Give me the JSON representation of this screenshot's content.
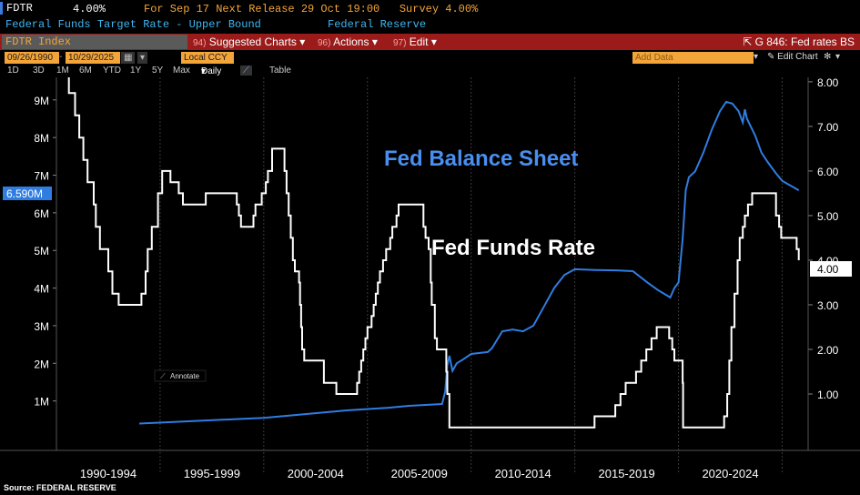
{
  "header": {
    "ticker": "FDTR",
    "price": "4.00%",
    "next_release": "For Sep 17 Next Release 29 Oct 19:00",
    "survey": "Survey 4.00%",
    "description": "Federal Funds Target Rate - Upper Bound",
    "source_org": "Federal Reserve"
  },
  "toolbar": {
    "index": "FDTR Index",
    "suggested_code": "94)",
    "suggested": "Suggested Charts",
    "actions_code": "96)",
    "actions": "Actions",
    "edit_code": "97)",
    "edit": "Edit",
    "page": "G 846: Fed rates BS"
  },
  "controls": {
    "start_date": "09/26/1990",
    "end_date": "10/29/2025",
    "currency": "Local CCY",
    "add_data": "Add Data",
    "edit_chart": "Edit Chart",
    "periods": [
      "1D",
      "3D",
      "1M",
      "6M",
      "YTD",
      "1Y",
      "5Y",
      "Max"
    ],
    "frequency": "Daily",
    "table": "Table",
    "annotate": "Annotate"
  },
  "chart_data": {
    "type": "line",
    "annotations": [
      "Fed Balance Sheet",
      "Fed Funds Rate"
    ],
    "left_axis": {
      "ticks": [
        "9M",
        "8M",
        "7M",
        "6M",
        "5M",
        "4M",
        "3M",
        "2M",
        "1M"
      ],
      "range": [
        0,
        9.6
      ]
    },
    "right_axis": {
      "ticks": [
        "8.00",
        "7.00",
        "6.00",
        "5.00",
        "4.00",
        "3.00",
        "2.00",
        "1.00"
      ],
      "range": [
        0,
        8.1
      ]
    },
    "x_ticks": [
      "1990-1994",
      "1995-1999",
      "2000-2004",
      "2005-2009",
      "2010-2014",
      "2015-2019",
      "2020-2024"
    ],
    "last_value_tags": {
      "balance_sheet": "6.590M",
      "rate": "4.00"
    },
    "series": [
      {
        "name": "Fed Funds Rate",
        "axis": "right",
        "color": "#ffffff",
        "step": true,
        "points": [
          [
            1990.0,
            8.25
          ],
          [
            1990.6,
            7.75
          ],
          [
            1990.9,
            7.25
          ],
          [
            1991.1,
            6.75
          ],
          [
            1991.3,
            6.25
          ],
          [
            1991.5,
            5.75
          ],
          [
            1991.8,
            5.25
          ],
          [
            1991.9,
            4.75
          ],
          [
            1992.1,
            4.25
          ],
          [
            1992.5,
            3.75
          ],
          [
            1992.7,
            3.25
          ],
          [
            1993.0,
            3.0
          ],
          [
            1994.1,
            3.25
          ],
          [
            1994.3,
            3.75
          ],
          [
            1994.4,
            4.25
          ],
          [
            1994.6,
            4.75
          ],
          [
            1994.9,
            5.5
          ],
          [
            1995.1,
            6.0
          ],
          [
            1995.5,
            5.75
          ],
          [
            1995.9,
            5.5
          ],
          [
            1996.1,
            5.25
          ],
          [
            1997.2,
            5.5
          ],
          [
            1998.7,
            5.25
          ],
          [
            1998.8,
            5.0
          ],
          [
            1998.9,
            4.75
          ],
          [
            1999.5,
            5.0
          ],
          [
            1999.6,
            5.25
          ],
          [
            1999.9,
            5.5
          ],
          [
            2000.1,
            5.75
          ],
          [
            2000.2,
            6.0
          ],
          [
            2000.4,
            6.5
          ],
          [
            2001.0,
            6.0
          ],
          [
            2001.1,
            5.5
          ],
          [
            2001.2,
            5.0
          ],
          [
            2001.3,
            4.5
          ],
          [
            2001.4,
            4.0
          ],
          [
            2001.5,
            3.75
          ],
          [
            2001.7,
            3.5
          ],
          [
            2001.75,
            3.0
          ],
          [
            2001.8,
            2.5
          ],
          [
            2001.85,
            2.0
          ],
          [
            2001.95,
            1.75
          ],
          [
            2002.9,
            1.25
          ],
          [
            2003.5,
            1.0
          ],
          [
            2004.5,
            1.25
          ],
          [
            2004.6,
            1.5
          ],
          [
            2004.7,
            1.75
          ],
          [
            2004.8,
            2.0
          ],
          [
            2004.9,
            2.25
          ],
          [
            2005.0,
            2.5
          ],
          [
            2005.2,
            2.75
          ],
          [
            2005.3,
            3.0
          ],
          [
            2005.4,
            3.25
          ],
          [
            2005.5,
            3.5
          ],
          [
            2005.6,
            3.75
          ],
          [
            2005.75,
            4.0
          ],
          [
            2005.9,
            4.25
          ],
          [
            2006.1,
            4.5
          ],
          [
            2006.2,
            4.75
          ],
          [
            2006.4,
            5.0
          ],
          [
            2006.5,
            5.25
          ],
          [
            2007.7,
            4.75
          ],
          [
            2007.8,
            4.5
          ],
          [
            2007.95,
            4.25
          ],
          [
            2008.05,
            3.5
          ],
          [
            2008.1,
            3.0
          ],
          [
            2008.25,
            2.25
          ],
          [
            2008.35,
            2.0
          ],
          [
            2008.8,
            1.5
          ],
          [
            2008.85,
            1.0
          ],
          [
            2008.95,
            0.25
          ],
          [
            2015.95,
            0.5
          ],
          [
            2016.95,
            0.75
          ],
          [
            2017.2,
            1.0
          ],
          [
            2017.45,
            1.25
          ],
          [
            2017.95,
            1.5
          ],
          [
            2018.2,
            1.75
          ],
          [
            2018.45,
            2.0
          ],
          [
            2018.7,
            2.25
          ],
          [
            2018.95,
            2.5
          ],
          [
            2019.55,
            2.25
          ],
          [
            2019.7,
            2.0
          ],
          [
            2019.8,
            1.75
          ],
          [
            2020.2,
            1.25
          ],
          [
            2020.22,
            0.25
          ],
          [
            2022.2,
            0.5
          ],
          [
            2022.35,
            1.0
          ],
          [
            2022.45,
            1.75
          ],
          [
            2022.55,
            2.5
          ],
          [
            2022.7,
            3.25
          ],
          [
            2022.85,
            4.0
          ],
          [
            2022.95,
            4.5
          ],
          [
            2023.1,
            4.75
          ],
          [
            2023.2,
            5.0
          ],
          [
            2023.35,
            5.25
          ],
          [
            2023.55,
            5.5
          ],
          [
            2024.7,
            5.0
          ],
          [
            2024.85,
            4.75
          ],
          [
            2024.95,
            4.5
          ],
          [
            2025.7,
            4.25
          ],
          [
            2025.8,
            4.0
          ]
        ]
      },
      {
        "name": "Fed Balance Sheet",
        "axis": "left",
        "color": "#2f7de1",
        "unit": "M",
        "points": [
          [
            1994.0,
            0.4
          ],
          [
            1996.0,
            0.45
          ],
          [
            1998.0,
            0.5
          ],
          [
            2000.0,
            0.55
          ],
          [
            2002.0,
            0.65
          ],
          [
            2004.0,
            0.75
          ],
          [
            2006.0,
            0.82
          ],
          [
            2007.0,
            0.87
          ],
          [
            2008.6,
            0.92
          ],
          [
            2008.75,
            1.25
          ],
          [
            2008.85,
            1.95
          ],
          [
            2008.95,
            2.2
          ],
          [
            2009.1,
            1.8
          ],
          [
            2009.3,
            2.0
          ],
          [
            2009.6,
            2.1
          ],
          [
            2010.0,
            2.25
          ],
          [
            2010.8,
            2.3
          ],
          [
            2011.0,
            2.4
          ],
          [
            2011.5,
            2.85
          ],
          [
            2012.0,
            2.9
          ],
          [
            2012.5,
            2.85
          ],
          [
            2013.0,
            3.0
          ],
          [
            2013.5,
            3.5
          ],
          [
            2014.0,
            4.0
          ],
          [
            2014.5,
            4.35
          ],
          [
            2015.0,
            4.5
          ],
          [
            2016.0,
            4.48
          ],
          [
            2017.0,
            4.47
          ],
          [
            2017.8,
            4.45
          ],
          [
            2018.5,
            4.15
          ],
          [
            2019.0,
            3.95
          ],
          [
            2019.6,
            3.75
          ],
          [
            2019.8,
            4.0
          ],
          [
            2020.0,
            4.15
          ],
          [
            2020.2,
            5.3
          ],
          [
            2020.35,
            6.6
          ],
          [
            2020.5,
            6.95
          ],
          [
            2020.8,
            7.1
          ],
          [
            2021.2,
            7.6
          ],
          [
            2021.6,
            8.2
          ],
          [
            2022.0,
            8.7
          ],
          [
            2022.3,
            8.95
          ],
          [
            2022.6,
            8.9
          ],
          [
            2022.9,
            8.7
          ],
          [
            2023.1,
            8.4
          ],
          [
            2023.2,
            8.75
          ],
          [
            2023.3,
            8.5
          ],
          [
            2023.7,
            8.05
          ],
          [
            2024.0,
            7.6
          ],
          [
            2024.3,
            7.35
          ],
          [
            2024.7,
            7.05
          ],
          [
            2025.0,
            6.85
          ],
          [
            2025.8,
            6.6
          ]
        ]
      }
    ]
  },
  "footer": {
    "source": "Source: FEDERAL RESERVE"
  }
}
